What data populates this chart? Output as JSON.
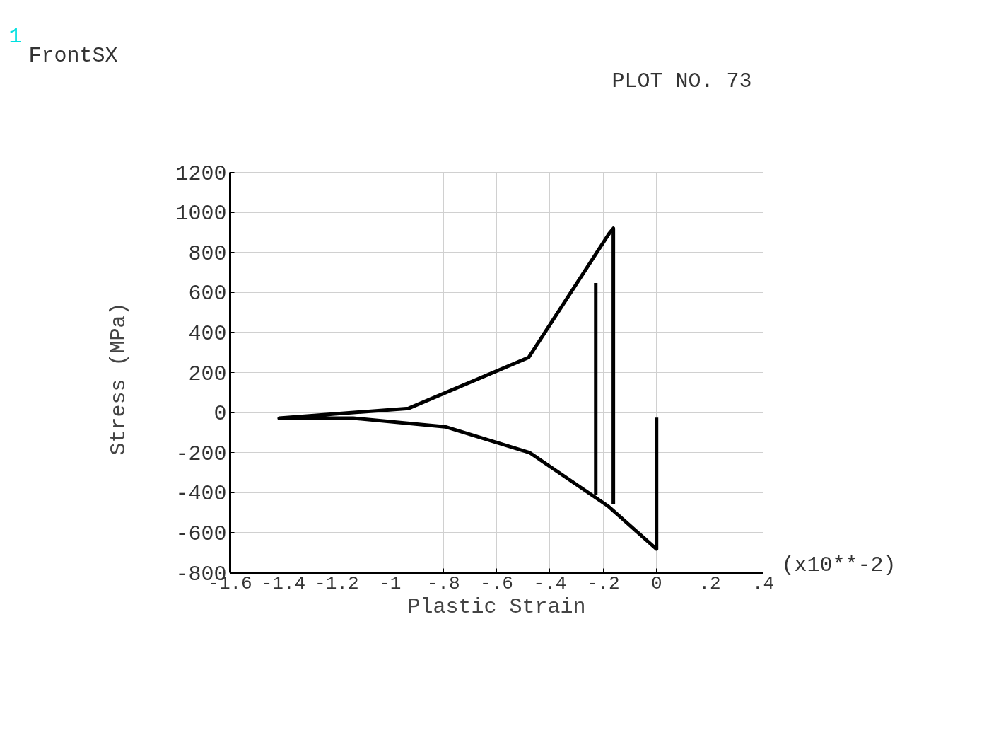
{
  "chart_data": {
    "type": "line",
    "title": "FrontSX",
    "xlabel": "Plastic Strain",
    "ylabel": "Stress  (MPa)",
    "annotations": [
      "1",
      "PLOT NO.   73",
      "(x10**-2)"
    ],
    "xlim": [
      -1.6,
      0.4
    ],
    "ylim": [
      -800,
      1200
    ],
    "xticks": [
      -1.6,
      -1.4,
      -1.2,
      {
        "value": -1,
        "label": "-1"
      },
      {
        "value": -0.8,
        "label": "-.8"
      },
      {
        "value": -0.6,
        "label": "-.6"
      },
      {
        "value": -0.4,
        "label": "-.4"
      },
      {
        "value": -0.2,
        "label": "-.2"
      },
      0,
      {
        "value": 0.2,
        "label": ".2"
      },
      {
        "value": 0.4,
        "label": ".4"
      }
    ],
    "yticks": [
      -800,
      -600,
      -400,
      -200,
      0,
      200,
      400,
      600,
      800,
      1000,
      1200
    ],
    "grid": true,
    "marker": "none",
    "line_style": "solid",
    "series": [
      {
        "color": "#000000",
        "x": [
          0,
          0,
          -0.183,
          -0.475,
          -0.793,
          -1.138,
          -1.416,
          -0.93,
          -0.48,
          -0.178,
          -0.162,
          -0.162
        ],
        "values": [
          -25,
          -682,
          -466,
          -201,
          -71,
          -28,
          -28,
          21,
          275,
          894,
          920,
          -456
        ]
      },
      {
        "color": "#000000",
        "x": [
          -0.228,
          -0.228
        ],
        "values": [
          647,
          -413
        ]
      }
    ]
  }
}
